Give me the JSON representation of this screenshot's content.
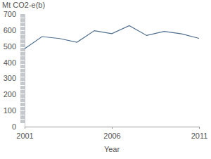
{
  "chart_data": {
    "type": "line",
    "y_label": "Mt CO2-e(b)",
    "x_label": "Year",
    "x": [
      2001,
      2002,
      2003,
      2004,
      2005,
      2006,
      2007,
      2008,
      2009,
      2010,
      2011
    ],
    "values": [
      485,
      560,
      548,
      525,
      597,
      578,
      628,
      567,
      592,
      577,
      549
    ],
    "color": "#4e6e8e",
    "xlim": [
      2001,
      2011
    ],
    "xticks": [
      2001,
      2006,
      2011
    ],
    "ylim": [
      0,
      700
    ],
    "yticks": [
      0,
      100,
      200,
      300,
      400,
      500,
      600,
      700
    ],
    "grid": false
  }
}
